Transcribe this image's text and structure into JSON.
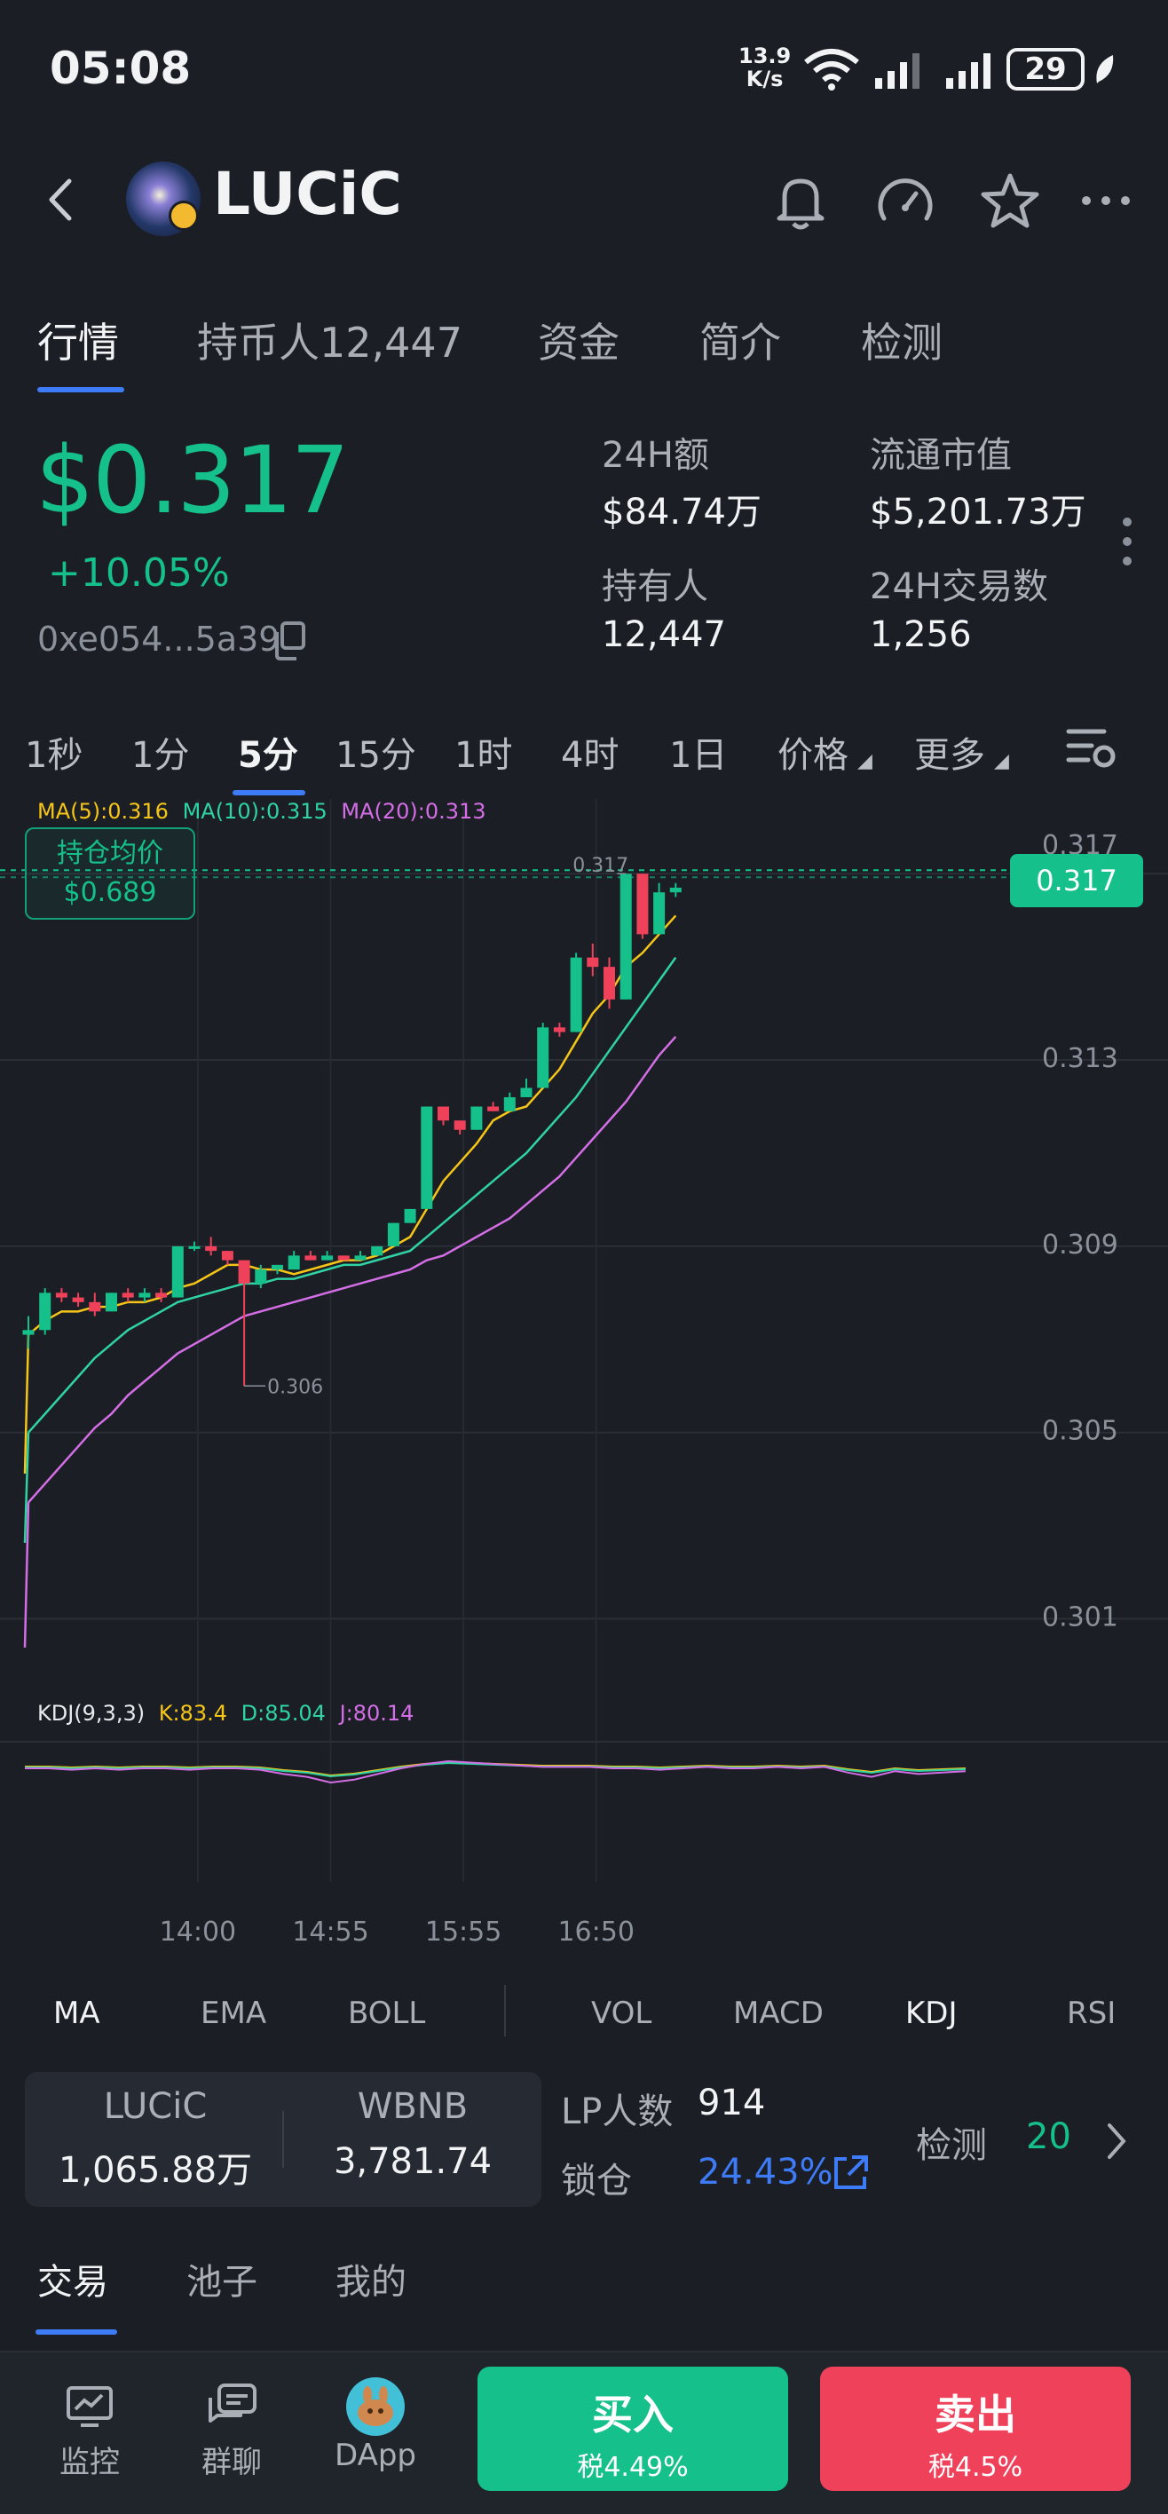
{
  "status_bar": {
    "time": "05:08",
    "net_speed_value": "13.9",
    "net_speed_unit": "K/s",
    "battery": "29"
  },
  "header": {
    "token_name": "LUCiC",
    "icons": [
      "back-icon",
      "bell-icon",
      "gauge-icon",
      "star-icon",
      "more-icon"
    ]
  },
  "tabs": [
    {
      "label": "行情",
      "active": true
    },
    {
      "label": "持币人12,447",
      "active": false
    },
    {
      "label": "资金",
      "active": false
    },
    {
      "label": "简介",
      "active": false
    },
    {
      "label": "检测",
      "active": false
    }
  ],
  "price": {
    "value": "$0.317",
    "change": "+10.05%",
    "address": "0xe054...5a39"
  },
  "stats": [
    {
      "label": "24H额",
      "value": "$84.74万"
    },
    {
      "label": "流通市值",
      "value": "$5,201.73万"
    },
    {
      "label": "持有人",
      "value": "12,447"
    },
    {
      "label": "24H交易数",
      "value": "1,256"
    }
  ],
  "intervals": [
    {
      "label": "1秒",
      "active": false
    },
    {
      "label": "1分",
      "active": false
    },
    {
      "label": "5分",
      "active": true
    },
    {
      "label": "15分",
      "active": false
    },
    {
      "label": "1时",
      "active": false
    },
    {
      "label": "4时",
      "active": false
    },
    {
      "label": "1日",
      "active": false
    }
  ],
  "interval_extra": {
    "price_label": "价格",
    "more_label": "更多"
  },
  "ma_legend": {
    "ma5": "MA(5):0.316",
    "ma10": "MA(10):0.315",
    "ma20": "MA(20):0.313"
  },
  "avg_cost": {
    "label": "持仓均价",
    "value": "$0.689"
  },
  "kdj_legend": {
    "name": "KDJ(9,3,3)",
    "k": "K:83.4",
    "d": "D:85.04",
    "j": "J:80.14"
  },
  "chart_data": {
    "type": "candlestick",
    "interval": "5分",
    "y_ticks": [
      "0.317",
      "0.313",
      "0.309",
      "0.305",
      "0.301"
    ],
    "ylim": [
      0.3,
      0.3175
    ],
    "x_ticks": [
      "14:00",
      "14:55",
      "15:55",
      "16:50"
    ],
    "current_price": "0.317",
    "annotations": {
      "high": "0.317",
      "low": "0.306"
    },
    "candles": [
      {
        "o": 0.3071,
        "h": 0.3075,
        "l": 0.3068,
        "c": 0.3072
      },
      {
        "o": 0.3072,
        "h": 0.3081,
        "l": 0.3071,
        "c": 0.308
      },
      {
        "o": 0.308,
        "h": 0.3081,
        "l": 0.3078,
        "c": 0.3079
      },
      {
        "o": 0.3079,
        "h": 0.308,
        "l": 0.3077,
        "c": 0.3078
      },
      {
        "o": 0.3078,
        "h": 0.308,
        "l": 0.3075,
        "c": 0.3076
      },
      {
        "o": 0.3076,
        "h": 0.308,
        "l": 0.3076,
        "c": 0.308
      },
      {
        "o": 0.308,
        "h": 0.3081,
        "l": 0.3078,
        "c": 0.3079
      },
      {
        "o": 0.3079,
        "h": 0.3081,
        "l": 0.3078,
        "c": 0.308
      },
      {
        "o": 0.308,
        "h": 0.3081,
        "l": 0.3078,
        "c": 0.3079
      },
      {
        "o": 0.3079,
        "h": 0.309,
        "l": 0.3079,
        "c": 0.309
      },
      {
        "o": 0.309,
        "h": 0.3091,
        "l": 0.3089,
        "c": 0.309
      },
      {
        "o": 0.309,
        "h": 0.3092,
        "l": 0.3088,
        "c": 0.3089
      },
      {
        "o": 0.3089,
        "h": 0.3089,
        "l": 0.3086,
        "c": 0.3087
      },
      {
        "o": 0.3087,
        "h": 0.3087,
        "l": 0.306,
        "c": 0.3082
      },
      {
        "o": 0.3082,
        "h": 0.3086,
        "l": 0.3081,
        "c": 0.3085
      },
      {
        "o": 0.3085,
        "h": 0.3086,
        "l": 0.3084,
        "c": 0.3086
      },
      {
        "o": 0.3085,
        "h": 0.3089,
        "l": 0.3085,
        "c": 0.3088
      },
      {
        "o": 0.3088,
        "h": 0.3089,
        "l": 0.3087,
        "c": 0.3087
      },
      {
        "o": 0.3087,
        "h": 0.3089,
        "l": 0.3087,
        "c": 0.3088
      },
      {
        "o": 0.3088,
        "h": 0.3088,
        "l": 0.3087,
        "c": 0.3087
      },
      {
        "o": 0.3087,
        "h": 0.3089,
        "l": 0.3087,
        "c": 0.3088
      },
      {
        "o": 0.3088,
        "h": 0.309,
        "l": 0.3088,
        "c": 0.309
      },
      {
        "o": 0.309,
        "h": 0.3095,
        "l": 0.309,
        "c": 0.3095
      },
      {
        "o": 0.3095,
        "h": 0.3098,
        "l": 0.3095,
        "c": 0.3098
      },
      {
        "o": 0.3098,
        "h": 0.312,
        "l": 0.3098,
        "c": 0.312
      },
      {
        "o": 0.312,
        "h": 0.312,
        "l": 0.3116,
        "c": 0.3117
      },
      {
        "o": 0.3117,
        "h": 0.3117,
        "l": 0.3114,
        "c": 0.3115
      },
      {
        "o": 0.3115,
        "h": 0.312,
        "l": 0.3115,
        "c": 0.312
      },
      {
        "o": 0.312,
        "h": 0.3121,
        "l": 0.3119,
        "c": 0.3119
      },
      {
        "o": 0.3119,
        "h": 0.3123,
        "l": 0.3119,
        "c": 0.3122
      },
      {
        "o": 0.3122,
        "h": 0.3126,
        "l": 0.3122,
        "c": 0.3124
      },
      {
        "o": 0.3124,
        "h": 0.3138,
        "l": 0.3124,
        "c": 0.3137
      },
      {
        "o": 0.3137,
        "h": 0.3138,
        "l": 0.3135,
        "c": 0.3136
      },
      {
        "o": 0.3136,
        "h": 0.3153,
        "l": 0.3136,
        "c": 0.3152
      },
      {
        "o": 0.3152,
        "h": 0.3155,
        "l": 0.3148,
        "c": 0.315
      },
      {
        "o": 0.315,
        "h": 0.3152,
        "l": 0.3141,
        "c": 0.3143
      },
      {
        "o": 0.3143,
        "h": 0.317,
        "l": 0.3143,
        "c": 0.317
      },
      {
        "o": 0.317,
        "h": 0.317,
        "l": 0.3156,
        "c": 0.3157
      },
      {
        "o": 0.3157,
        "h": 0.3168,
        "l": 0.3157,
        "c": 0.3166
      },
      {
        "o": 0.3166,
        "h": 0.3168,
        "l": 0.3165,
        "c": 0.3167
      }
    ],
    "ma5": [
      0.3071,
      0.3074,
      0.3076,
      0.3076,
      0.3077,
      0.3077,
      0.3078,
      0.3078,
      0.3079,
      0.3081,
      0.3082,
      0.3084,
      0.3086,
      0.3086,
      0.3085,
      0.3085,
      0.3084,
      0.3085,
      0.3086,
      0.3087,
      0.3087,
      0.3088,
      0.309,
      0.3092,
      0.3098,
      0.3104,
      0.3108,
      0.3112,
      0.3117,
      0.3119,
      0.312,
      0.3124,
      0.3128,
      0.3134,
      0.314,
      0.3144,
      0.315,
      0.3153,
      0.3157,
      0.3161
    ],
    "ma10": [
      0.305,
      0.3054,
      0.3058,
      0.3062,
      0.3066,
      0.3069,
      0.3072,
      0.3074,
      0.3076,
      0.3078,
      0.3079,
      0.308,
      0.3081,
      0.3082,
      0.3082,
      0.3083,
      0.3083,
      0.3084,
      0.3085,
      0.3086,
      0.3086,
      0.3087,
      0.3088,
      0.3089,
      0.3092,
      0.3095,
      0.3098,
      0.3101,
      0.3104,
      0.3107,
      0.311,
      0.3114,
      0.3118,
      0.3122,
      0.3127,
      0.3132,
      0.3137,
      0.3142,
      0.3147,
      0.3152
    ],
    "ma20": [
      0.3035,
      0.3039,
      0.3043,
      0.3047,
      0.3051,
      0.3054,
      0.3058,
      0.3061,
      0.3064,
      0.3067,
      0.3069,
      0.3071,
      0.3073,
      0.3075,
      0.3076,
      0.3077,
      0.3078,
      0.3079,
      0.308,
      0.3081,
      0.3082,
      0.3083,
      0.3084,
      0.3085,
      0.3087,
      0.3088,
      0.309,
      0.3092,
      0.3094,
      0.3096,
      0.3099,
      0.3102,
      0.3105,
      0.3109,
      0.3113,
      0.3117,
      0.3121,
      0.3126,
      0.3131,
      0.3135
    ]
  },
  "indicators": [
    {
      "label": "MA",
      "active": true
    },
    {
      "label": "EMA",
      "active": false
    },
    {
      "label": "BOLL",
      "active": false
    },
    {
      "label": "VOL",
      "active": false
    },
    {
      "label": "MACD",
      "active": false
    },
    {
      "label": "KDJ",
      "active": true
    },
    {
      "label": "RSI",
      "active": false
    }
  ],
  "pool": {
    "token_a": {
      "name": "LUCiC",
      "value": "1,065.88万"
    },
    "token_b": {
      "name": "WBNB",
      "value": "3,781.74"
    },
    "lp_label": "LP人数",
    "lp_value": "914",
    "lock_label": "锁仓",
    "lock_value": "24.43%",
    "check_label": "检测",
    "check_value": "20"
  },
  "bottom_tabs": [
    {
      "label": "交易",
      "active": true
    },
    {
      "label": "池子",
      "active": false
    },
    {
      "label": "我的",
      "active": false
    }
  ],
  "nav": [
    {
      "label": "监控",
      "icon": "monitor-icon"
    },
    {
      "label": "群聊",
      "icon": "chat-icon"
    },
    {
      "label": "DApp",
      "icon": "pancake-icon"
    }
  ],
  "buy": {
    "label": "买入",
    "tax": "税4.49%"
  },
  "sell": {
    "label": "卖出",
    "tax": "税4.5%"
  },
  "colors": {
    "up": "#16c08a",
    "down": "#f0415b",
    "accent": "#3d7bf7",
    "ma5": "#f5c518",
    "ma10": "#2fd3a4",
    "ma20": "#d46ee6"
  }
}
